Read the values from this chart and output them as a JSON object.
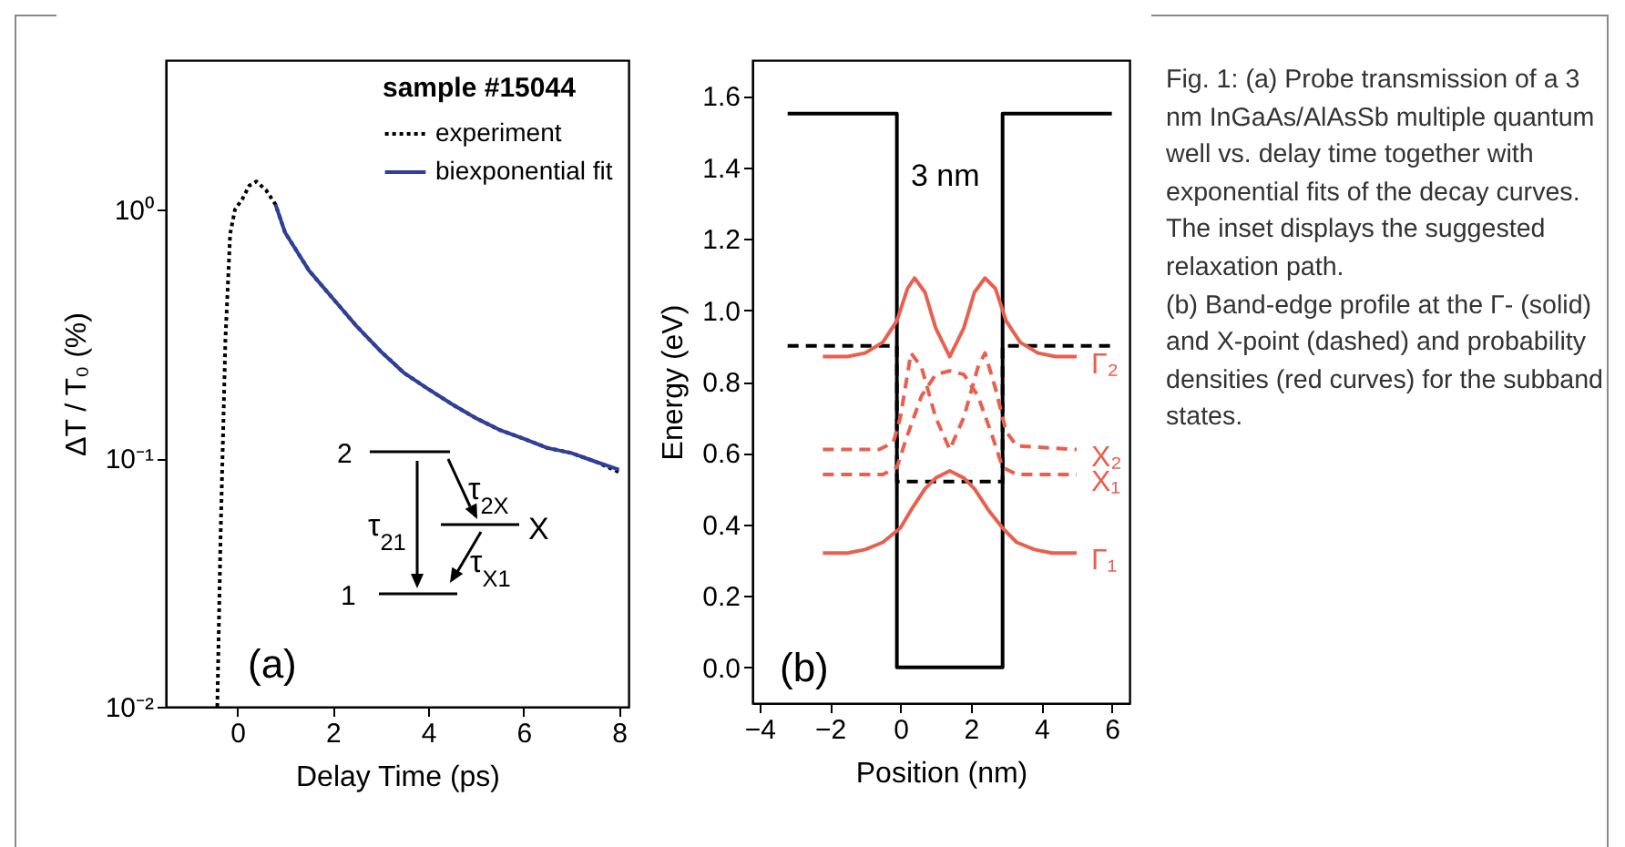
{
  "chart_data": [
    {
      "type": "line",
      "xlabel": "Delay Time (ps)",
      "ylabel": "ΔT / T₀ (%)",
      "legend_title": "sample #15044",
      "legend": "top right",
      "log": "y",
      "xlim": [
        -1.5,
        8.2
      ],
      "xticks": [
        0,
        2,
        4,
        6,
        8
      ],
      "ylim": [
        0.01,
        4
      ],
      "yticks": [
        {
          "value": 0.01,
          "label": "10⁻²"
        },
        {
          "value": 0.1,
          "label": "10⁻¹"
        },
        {
          "value": 1,
          "label": "10⁰"
        }
      ],
      "annotations": [
        "(a)",
        "2",
        "1",
        "X",
        "τ$_{21}$",
        "τ$_{2X}$",
        "τ$_{X1}$"
      ],
      "series": [
        {
          "name": "experiment",
          "color": "#000000",
          "line_style": "dotted",
          "x": [
            -0.42,
            -0.35,
            -0.25,
            -0.15,
            -0.05,
            0.1,
            0.25,
            0.4,
            0.6,
            0.8,
            1,
            1.5,
            2,
            2.5,
            3,
            3.5,
            4,
            4.5,
            5,
            5.5,
            6,
            6.5,
            7,
            7.5,
            8
          ],
          "values": [
            0.01,
            0.05,
            0.3,
            0.8,
            1.0,
            1.1,
            1.25,
            1.3,
            1.2,
            1.05,
            0.81,
            0.57,
            0.44,
            0.34,
            0.27,
            0.22,
            0.19,
            0.165,
            0.145,
            0.13,
            0.12,
            0.11,
            0.105,
            0.097,
            0.088
          ]
        },
        {
          "name": "biexponential fit",
          "color": "#2f3f9a",
          "line_style": "solid",
          "x": [
            0.8,
            1,
            1.5,
            2,
            2.5,
            3,
            3.5,
            4,
            4.5,
            5,
            5.5,
            6,
            6.5,
            7,
            7.5,
            8
          ],
          "values": [
            1.05,
            0.81,
            0.57,
            0.44,
            0.34,
            0.27,
            0.22,
            0.19,
            0.165,
            0.145,
            0.13,
            0.12,
            0.11,
            0.105,
            0.097,
            0.09
          ]
        }
      ]
    },
    {
      "type": "line",
      "xlabel": "Position (nm)",
      "ylabel": "Energy (eV)",
      "xlim": [
        -4.2,
        6.5
      ],
      "xticks": [
        -4,
        -2,
        0,
        2,
        4,
        6
      ],
      "ylim": [
        -0.1,
        1.7
      ],
      "yticks": [
        {
          "value": 0,
          "label": "0.0"
        },
        {
          "value": 0.2,
          "label": "0.2"
        },
        {
          "value": 0.4,
          "label": "0.4"
        },
        {
          "value": 0.6,
          "label": "0.6"
        },
        {
          "value": 0.8,
          "label": "0.8"
        },
        {
          "value": 1,
          "label": "1.0"
        },
        {
          "value": 1.2,
          "label": "1.2"
        },
        {
          "value": 1.4,
          "label": "1.4"
        },
        {
          "value": 1.6,
          "label": "1.6"
        }
      ],
      "annotations": [
        "(b)",
        "3 nm",
        "Fig. 1: (a) Probe transmission of a 3 nm InGaAs/AlAsSb multiple quantum well vs. delay time together with exponential fits of the decay curves. The inset displays the suggested relaxation path.",
        "(b) Band-edge profile at the Γ- (solid) and X-point (dashed) and probability densities (red curves) for the subband states."
      ],
      "series": [
        {
          "color": "#000000",
          "line_style": "solid",
          "x": [
            -3.2,
            -0.1,
            -0.1,
            2.9,
            2.9,
            6
          ],
          "values": [
            1.55,
            1.55,
            0,
            0,
            1.55,
            1.55
          ]
        },
        {
          "color": "#000000",
          "line_style": "dashed",
          "x": [
            -3.2,
            -0.1,
            -0.1,
            2.9,
            2.9,
            6
          ],
          "values": [
            0.9,
            0.9,
            0.52,
            0.52,
            0.9,
            0.9
          ]
        },
        {
          "name": "Γ₂",
          "color": "#e8604f",
          "line_style": "solid",
          "x": [
            -2.2,
            -1.5,
            -1,
            -0.5,
            -0.1,
            0.2,
            0.4,
            0.7,
            1.0,
            1.4,
            1.8,
            2.1,
            2.4,
            2.7,
            3.0,
            3.4,
            3.9,
            4.4,
            5
          ],
          "values": [
            0.87,
            0.87,
            0.88,
            0.91,
            0.97,
            1.06,
            1.09,
            1.05,
            0.95,
            0.87,
            0.95,
            1.05,
            1.09,
            1.06,
            0.97,
            0.91,
            0.88,
            0.87,
            0.87
          ]
        },
        {
          "name": "X₂",
          "color": "#e8604f",
          "line_style": "dashed",
          "x": [
            -2.2,
            -0.6,
            -0.2,
            0,
            0.3,
            0.6,
            1.0,
            1.4,
            1.8,
            2.2,
            2.4,
            2.7,
            3.0,
            3.3,
            5
          ],
          "values": [
            0.61,
            0.61,
            0.63,
            0.7,
            0.88,
            0.84,
            0.7,
            0.61,
            0.7,
            0.84,
            0.88,
            0.78,
            0.66,
            0.62,
            0.61
          ]
        },
        {
          "name": "X₁",
          "color": "#e8604f",
          "line_style": "dashed",
          "x": [
            -2.2,
            -0.5,
            -0.1,
            0.2,
            0.6,
            1.0,
            1.4,
            1.8,
            2.2,
            2.6,
            2.9,
            3.3,
            5
          ],
          "values": [
            0.54,
            0.54,
            0.56,
            0.65,
            0.76,
            0.82,
            0.83,
            0.82,
            0.76,
            0.65,
            0.56,
            0.54,
            0.54
          ]
        },
        {
          "name": "Γ₁",
          "color": "#e8604f",
          "line_style": "solid",
          "x": [
            -2.2,
            -1.5,
            -1,
            -0.5,
            0,
            0.3,
            0.7,
            1,
            1.4,
            1.8,
            2.1,
            2.5,
            2.9,
            3.3,
            3.8,
            4.3,
            5
          ],
          "values": [
            0.32,
            0.32,
            0.33,
            0.35,
            0.39,
            0.44,
            0.5,
            0.53,
            0.55,
            0.53,
            0.5,
            0.44,
            0.39,
            0.35,
            0.33,
            0.32,
            0.32
          ]
        }
      ]
    }
  ]
}
